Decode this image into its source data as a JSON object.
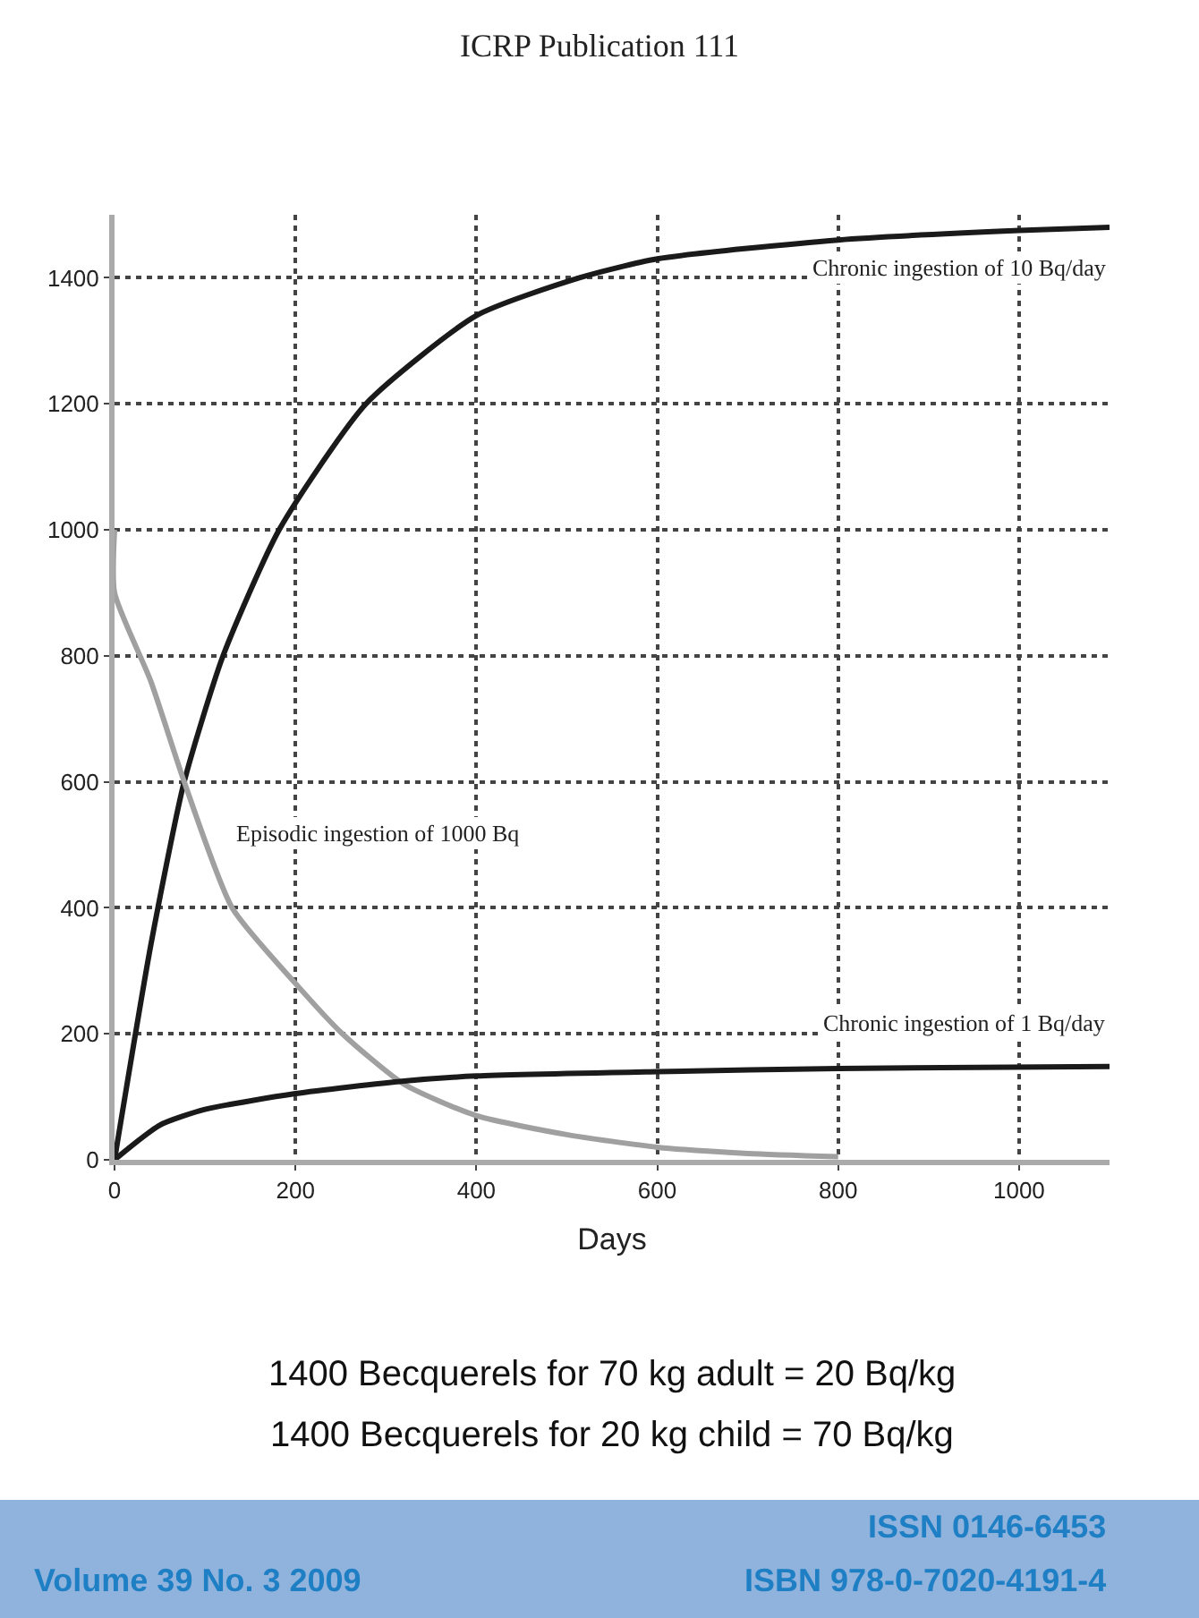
{
  "chart_data": {
    "type": "line",
    "title": "ICRP Publication 111",
    "xlabel": "Days",
    "xlim": [
      0,
      1100
    ],
    "xticks": [
      0,
      200,
      400,
      600,
      800,
      1000
    ],
    "ylim": [
      0,
      1500
    ],
    "yticks": [
      0,
      200,
      400,
      600,
      800,
      1000,
      1200,
      1400
    ],
    "grid": true,
    "legend": false,
    "marker": "none",
    "line_style": "solid",
    "series": [
      {
        "name": "Chronic ingestion of 10 Bq/day",
        "color": "#1a1a1a",
        "x": [
          0,
          40,
          77,
          120,
          182,
          278,
          400,
          514,
          600,
          800,
          1000,
          1100
        ],
        "values": [
          0,
          340,
          600,
          800,
          1000,
          1200,
          1340,
          1400,
          1430,
          1460,
          1475,
          1480
        ]
      },
      {
        "name": "Episodic ingestion of 1000 Bq",
        "color": "#a0a0a0",
        "x": [
          0,
          0,
          40,
          77,
          130,
          200,
          252,
          320,
          400,
          500,
          600,
          700,
          800
        ],
        "values": [
          1000,
          900,
          760,
          600,
          400,
          280,
          200,
          120,
          70,
          40,
          20,
          10,
          5
        ]
      },
      {
        "name": "Chronic ingestion of 1 Bq/day",
        "color": "#1a1a1a",
        "x": [
          0,
          50,
          100,
          200,
          320,
          400,
          600,
          800,
          1100
        ],
        "values": [
          0,
          55,
          80,
          105,
          125,
          133,
          140,
          145,
          148
        ]
      }
    ],
    "annotations": [
      "1400 Becquerels for 70 kg adult = 20 Bq/kg",
      "1400 Becquerels for 20 kg child = 70 Bq/kg",
      "ISSN 0146-6453",
      "Volume 39 No. 3 2009",
      "ISBN 978-0-7020-4191-4"
    ]
  }
}
